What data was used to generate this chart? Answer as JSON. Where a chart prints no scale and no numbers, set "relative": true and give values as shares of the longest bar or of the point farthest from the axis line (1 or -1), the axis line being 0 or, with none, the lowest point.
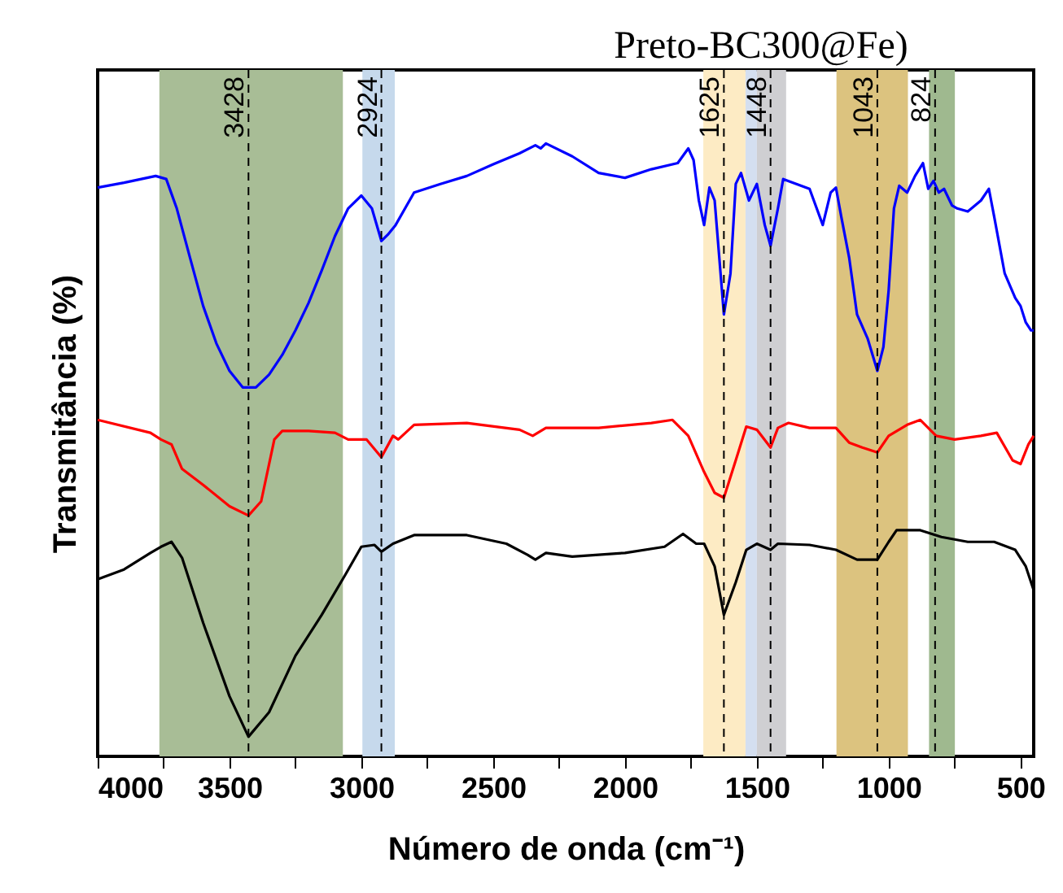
{
  "chart_data": {
    "type": "line",
    "title": "Preto-BC300@Fe)",
    "xlabel": "Número de onda (cm⁻¹)",
    "ylabel": "Transmitância (%)",
    "relative": true,
    "grid": false,
    "line_style": "solid",
    "marker": "none",
    "xlim": [
      4000,
      450
    ],
    "xticks": [
      4000,
      {
        "value": 3750,
        "label": null
      },
      3500,
      {
        "value": 3250,
        "label": null
      },
      3000,
      {
        "value": 2750,
        "label": null
      },
      2500,
      {
        "value": 2250,
        "label": null
      },
      2000,
      {
        "value": 1750,
        "label": null
      },
      1500,
      {
        "value": 1250,
        "label": null
      },
      1000,
      {
        "value": 750,
        "label": null
      },
      500
    ],
    "bands": [
      {
        "axis": "x",
        "from": 3766,
        "to": 3070,
        "color": "#a8bd96"
      },
      {
        "axis": "x",
        "from": 2996,
        "to": 2873,
        "color": "#c6d9ec"
      },
      {
        "axis": "x",
        "from": 1703,
        "to": 1543,
        "color": "#fdebc4"
      },
      {
        "axis": "x",
        "from": 1543,
        "to": 1500,
        "color": "#d4dff0"
      },
      {
        "axis": "x",
        "from": 1500,
        "to": 1389,
        "color": "#cfcfd2"
      },
      {
        "axis": "x",
        "from": 1198,
        "to": 927,
        "color": "#dcc37f"
      },
      {
        "axis": "x",
        "from": 847,
        "to": 749,
        "color": "#9fb98f"
      }
    ],
    "ref_lines": [
      {
        "axis": "x",
        "value": 3428,
        "label": "3428",
        "line_style": "dashed",
        "color": "#000000"
      },
      {
        "axis": "x",
        "value": 2924,
        "label": "2924",
        "line_style": "dashed",
        "color": "#000000"
      },
      {
        "axis": "x",
        "value": 1625,
        "label": "1625",
        "line_style": "dashed",
        "color": "#000000"
      },
      {
        "axis": "x",
        "value": 1448,
        "label": "1448",
        "line_style": "dashed",
        "color": "#000000"
      },
      {
        "axis": "x",
        "value": 1043,
        "label": "1043",
        "line_style": "dashed",
        "color": "#000000"
      },
      {
        "axis": "x",
        "value": 824,
        "label": "824",
        "line_style": "dashed",
        "color": "#000000"
      }
    ],
    "series": [
      {
        "color": "#0000ff",
        "x": [
          4000,
          3900,
          3780,
          3740,
          3700,
          3650,
          3600,
          3550,
          3500,
          3450,
          3400,
          3350,
          3300,
          3250,
          3200,
          3150,
          3100,
          3050,
          3000,
          2960,
          2924,
          2900,
          2870,
          2800,
          2700,
          2600,
          2500,
          2400,
          2340,
          2320,
          2300,
          2200,
          2100,
          2000,
          1900,
          1800,
          1760,
          1740,
          1720,
          1700,
          1680,
          1660,
          1625,
          1600,
          1580,
          1560,
          1530,
          1500,
          1470,
          1448,
          1420,
          1400,
          1350,
          1300,
          1250,
          1220,
          1200,
          1180,
          1150,
          1120,
          1080,
          1043,
          1020,
          1000,
          980,
          960,
          930,
          900,
          870,
          850,
          830,
          810,
          790,
          760,
          740,
          700,
          650,
          620,
          600,
          560,
          520,
          500,
          480,
          460,
          450
        ],
        "values": [
          0.928,
          0.936,
          0.947,
          0.942,
          0.894,
          0.814,
          0.735,
          0.674,
          0.629,
          0.602,
          0.602,
          0.623,
          0.655,
          0.695,
          0.74,
          0.793,
          0.849,
          0.894,
          0.915,
          0.894,
          0.841,
          0.851,
          0.867,
          0.92,
          0.934,
          0.947,
          0.966,
          0.984,
          0.997,
          0.992,
          1,
          0.979,
          0.952,
          0.944,
          0.958,
          0.968,
          0.992,
          0.973,
          0.907,
          0.867,
          0.928,
          0.907,
          0.721,
          0.788,
          0.934,
          0.952,
          0.907,
          0.934,
          0.867,
          0.833,
          0.894,
          0.942,
          0.934,
          0.926,
          0.867,
          0.92,
          0.928,
          0.881,
          0.814,
          0.721,
          0.682,
          0.629,
          0.668,
          0.761,
          0.894,
          0.931,
          0.92,
          0.947,
          0.968,
          0.926,
          0.939,
          0.92,
          0.926,
          0.899,
          0.894,
          0.889,
          0.907,
          0.926,
          0.881,
          0.788,
          0.748,
          0.735,
          0.708,
          0.695,
          0.695
        ]
      },
      {
        "color": "#ff0000",
        "x": [
          4000,
          3800,
          3760,
          3720,
          3680,
          3600,
          3500,
          3428,
          3380,
          3330,
          3300,
          3200,
          3100,
          3050,
          2980,
          2924,
          2880,
          2860,
          2800,
          2600,
          2400,
          2350,
          2300,
          2100,
          1900,
          1820,
          1760,
          1700,
          1660,
          1625,
          1580,
          1540,
          1500,
          1448,
          1420,
          1380,
          1300,
          1200,
          1150,
          1100,
          1043,
          1000,
          930,
          880,
          820,
          750,
          650,
          590,
          530,
          500,
          470,
          450
        ],
        "values": [
          0.549,
          0.528,
          0.517,
          0.509,
          0.469,
          0.443,
          0.408,
          0.393,
          0.416,
          0.517,
          0.531,
          0.531,
          0.528,
          0.517,
          0.517,
          0.488,
          0.523,
          0.517,
          0.541,
          0.544,
          0.533,
          0.523,
          0.536,
          0.536,
          0.544,
          0.549,
          0.523,
          0.464,
          0.43,
          0.422,
          0.483,
          0.538,
          0.533,
          0.504,
          0.536,
          0.544,
          0.536,
          0.536,
          0.512,
          0.504,
          0.496,
          0.523,
          0.541,
          0.549,
          0.523,
          0.517,
          0.523,
          0.528,
          0.483,
          0.477,
          0.509,
          0.523
        ]
      },
      {
        "color": "#000000",
        "x": [
          4000,
          3900,
          3800,
          3760,
          3720,
          3680,
          3600,
          3500,
          3428,
          3350,
          3250,
          3150,
          3060,
          3000,
          2950,
          2924,
          2880,
          2800,
          2600,
          2450,
          2370,
          2340,
          2300,
          2200,
          2000,
          1850,
          1780,
          1730,
          1700,
          1660,
          1625,
          1580,
          1540,
          1500,
          1448,
          1420,
          1300,
          1200,
          1120,
          1043,
          1000,
          970,
          880,
          800,
          700,
          600,
          520,
          480,
          450
        ],
        "values": [
          0.289,
          0.305,
          0.332,
          0.342,
          0.35,
          0.324,
          0.218,
          0.098,
          0.032,
          0.072,
          0.164,
          0.231,
          0.297,
          0.342,
          0.345,
          0.334,
          0.347,
          0.361,
          0.361,
          0.347,
          0.329,
          0.321,
          0.332,
          0.326,
          0.332,
          0.342,
          0.363,
          0.347,
          0.347,
          0.31,
          0.231,
          0.284,
          0.337,
          0.347,
          0.337,
          0.347,
          0.345,
          0.337,
          0.321,
          0.321,
          0.35,
          0.369,
          0.369,
          0.358,
          0.35,
          0.35,
          0.337,
          0.31,
          0.271
        ]
      }
    ]
  }
}
